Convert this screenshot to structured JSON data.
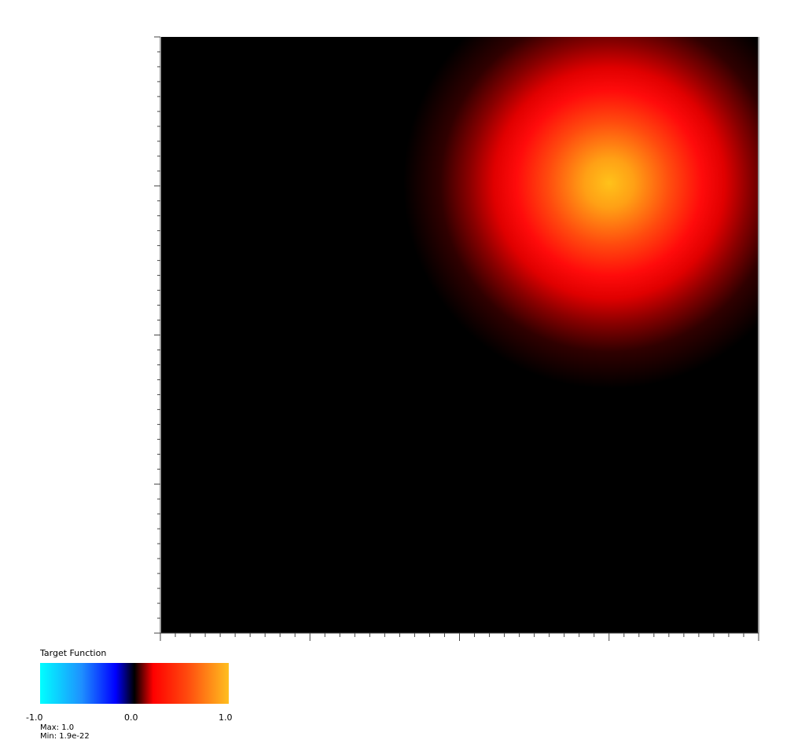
{
  "legend": {
    "title": "Target Function",
    "ticks": [
      "-1.0",
      "0.0",
      "1.0"
    ],
    "stats": {
      "max": "Max: 1.0",
      "min": "Min: 1.9e-22"
    },
    "colormap": [
      "#00ffff",
      "#0000ff",
      "#000000",
      "#ff0000",
      "#ffbf1f"
    ]
  },
  "field": {
    "peak_color": "#ffc21a",
    "mid_color": "#ff0b0b",
    "background_color": "#000000"
  }
}
